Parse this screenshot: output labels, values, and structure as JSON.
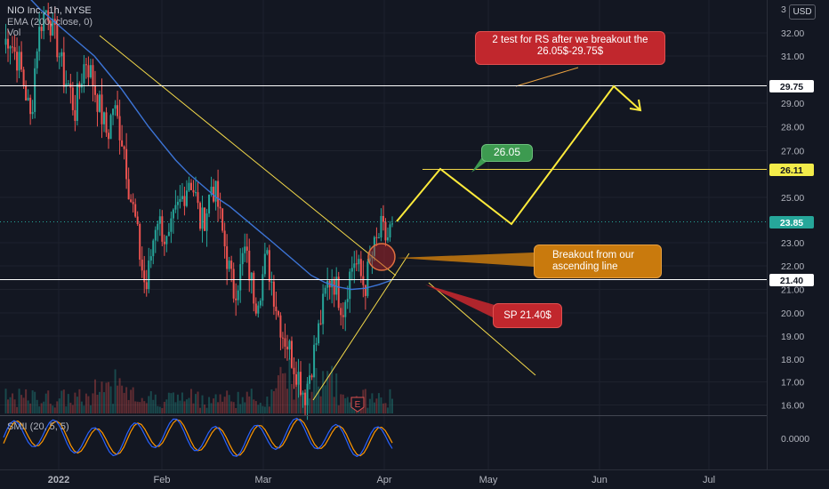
{
  "legend": {
    "symbol": "NIO Inc., 1h, NYSE",
    "ema": "EMA (200, close, 0)",
    "vol": "Vol"
  },
  "oscillator": {
    "label": "SMII (20, 5, 5)",
    "value_label": "0.0000"
  },
  "currency_button": "USD",
  "chart_data": {
    "type": "candlestick",
    "symbol": "NIO",
    "x_ticks": [
      "2022",
      "Feb",
      "Mar",
      "Apr",
      "May",
      "Jun",
      "Jul"
    ],
    "y_ticks": [
      "16.00",
      "17.00",
      "18.00",
      "19.00",
      "20.00",
      "21.00",
      "22.00",
      "23.00",
      "25.00",
      "27.00",
      "28.00",
      "29.00",
      "31.00",
      "32.00"
    ],
    "ylim": [
      15.6,
      33.4
    ],
    "price_levels": [
      {
        "label": "29.75",
        "value": 29.75,
        "style": "white-badge"
      },
      {
        "label": "26.11",
        "value": 26.11,
        "style": "yellow-badge"
      },
      {
        "label": "23.85",
        "value": 23.85,
        "style": "green-badge"
      },
      {
        "label": "21.40",
        "value": 21.4,
        "style": "white-badge"
      }
    ],
    "closes": [
      31.5,
      31.9,
      31.2,
      30.6,
      29.5,
      28.2,
      31.4,
      32.6,
      33.1,
      32.0,
      31.3,
      30.1,
      29.7,
      28.6,
      29.9,
      30.9,
      30.2,
      29.3,
      28.4,
      27.6,
      28.9,
      28.1,
      27.2,
      25.2,
      24.1,
      22.3,
      20.9,
      22.6,
      24.3,
      23.5,
      22.8,
      23.9,
      24.6,
      25.2,
      25.9,
      25.1,
      23.8,
      24.3,
      25.6,
      24.9,
      23.4,
      22.1,
      20.9,
      21.5,
      22.7,
      21.6,
      20.5,
      21.2,
      22.4,
      21.3,
      20.1,
      19.1,
      18.6,
      17.8,
      17.2,
      16.4,
      17.5,
      18.6,
      19.8,
      21.1,
      21.6,
      20.9,
      20.2,
      21.4,
      22.3,
      21.7,
      21.1,
      22.2,
      22.9,
      23.6,
      23.1,
      23.85
    ],
    "ema200": [
      33.6,
      33.0,
      32.5,
      32.0,
      31.5,
      31.0,
      30.3,
      29.6,
      28.8,
      28.0,
      27.3,
      26.6,
      26.0,
      25.5,
      25.0,
      24.6,
      24.1,
      23.6,
      23.1,
      22.6,
      22.1,
      21.6,
      21.3,
      21.1,
      21.0,
      21.05,
      21.2,
      21.4
    ],
    "annotations": [
      {
        "text": "2 test for RS after we breakout the 26.05$-29.75$",
        "color": "#c1272d"
      },
      {
        "text": "26.05",
        "color": "#3d9a50"
      },
      {
        "text": "Breakout from our ascending line",
        "color": "#c97a0d"
      },
      {
        "text": "SP 21.40$",
        "color": "#c1272d"
      }
    ],
    "projection_path": [
      23.85,
      26.11,
      23.85,
      29.75,
      29.0
    ],
    "event_marker": "E",
    "grid": true
  }
}
